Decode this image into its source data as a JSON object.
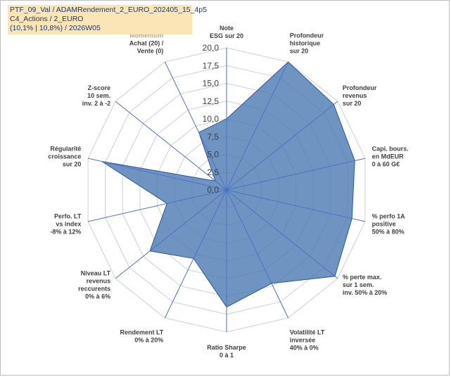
{
  "header": {
    "line1": "PTF_09_Val / ADAMRendement_2_EURO_202405_15_4p5",
    "line2": "C4_Actions / 2_EURO",
    "line3": "(10,1% | 10,8%) / 2026W05"
  },
  "chart_data": {
    "type": "radar",
    "title": "",
    "rmax": 20,
    "ticks": [
      "0,0",
      "2,5",
      "5,0",
      "7,5",
      "10,0",
      "12,5",
      "15,0",
      "17,5",
      "20,0"
    ],
    "categories": [
      {
        "lines": [
          "Note",
          "ESG sur 20"
        ]
      },
      {
        "lines": [
          "Profondeur",
          "historique",
          "sur 20"
        ]
      },
      {
        "lines": [
          "Profondeur",
          "revenus",
          "sur 20"
        ]
      },
      {
        "lines": [
          "Capi. bours.",
          "en MdEUR",
          "0 à 60 G€"
        ]
      },
      {
        "lines": [
          "% perfo 1A",
          "positive",
          "50% à 80%"
        ]
      },
      {
        "lines": [
          "% perte max.",
          "sur 1 sem.",
          "inv. 50% à 20%"
        ]
      },
      {
        "lines": [
          "Volatilité LT",
          "inversée",
          "40% à 0%"
        ]
      },
      {
        "lines": [
          "Ratio Sharpe",
          "0 à 1"
        ]
      },
      {
        "lines": [
          "Rendement LT",
          "0% à 20%"
        ]
      },
      {
        "lines": [
          "Niveau LT",
          "revenus",
          "reccurents",
          "0% à 6%"
        ]
      },
      {
        "lines": [
          "Perfo. LT",
          "vs index",
          "-8% à 12%"
        ]
      },
      {
        "lines": [
          "Régularité",
          "croissance",
          "sur 20"
        ]
      },
      {
        "lines": [
          "Z-score",
          "10 sem.",
          "inv. 2 à -2"
        ]
      },
      {
        "lines": [
          "Momentum",
          "Achat (20) /",
          "Vente (0)"
        ],
        "first_line_color": "#b8a987"
      }
    ],
    "series": [
      {
        "values": [
          10.0,
          20.0,
          19.3,
          18.5,
          18.1,
          19.5,
          14.6,
          16.5,
          10.7,
          13.8,
          8.6,
          18.0,
          2.0,
          9.0
        ]
      }
    ],
    "colors": {
      "fill": "#4f7cb5",
      "stroke": "#2f5597",
      "grid": "#d9d9d9",
      "spoke": "#4a72c4"
    }
  }
}
